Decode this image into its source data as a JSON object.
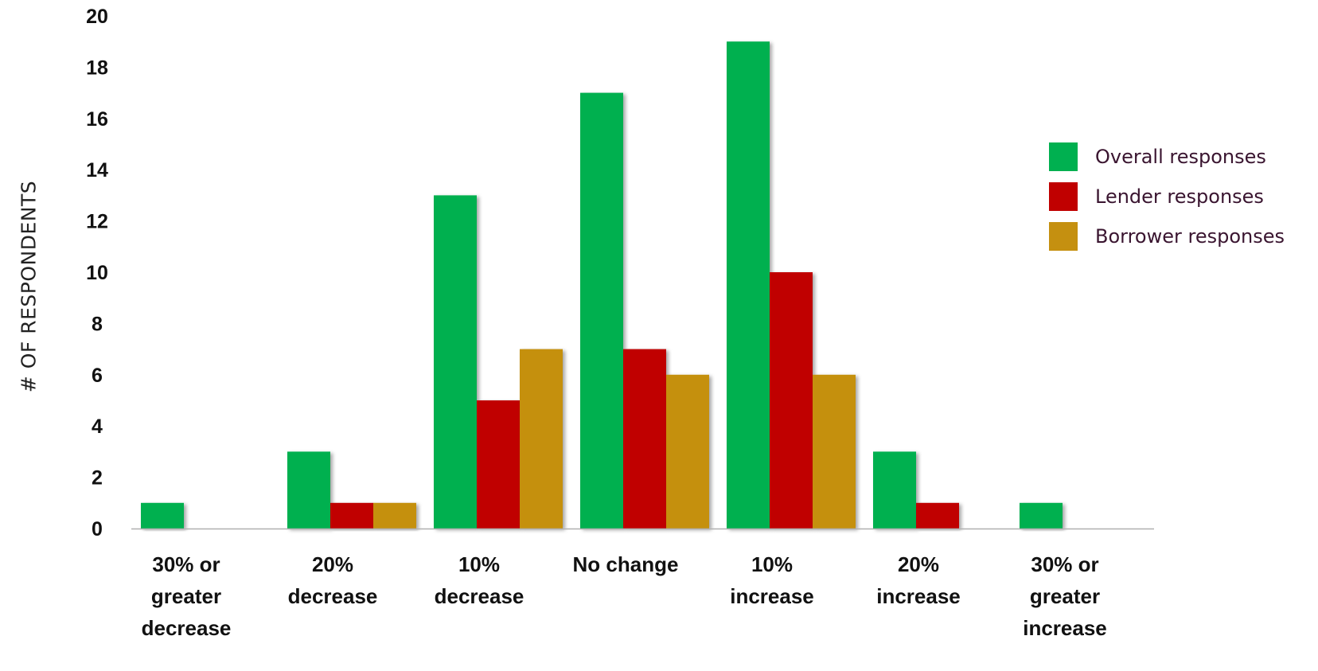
{
  "chart_data": {
    "type": "bar",
    "categories": [
      [
        "30% or",
        "greater",
        "decrease"
      ],
      [
        "20%",
        "decrease"
      ],
      [
        "10%",
        "decrease"
      ],
      [
        "No change"
      ],
      [
        "10%",
        "increase"
      ],
      [
        "20%",
        "increase"
      ],
      [
        "30% or",
        "greater",
        "increase"
      ]
    ],
    "series": [
      {
        "name": "Overall responses",
        "color": "#00b050",
        "values": [
          1,
          3,
          13,
          17,
          19,
          3,
          1
        ]
      },
      {
        "name": "Lender responses",
        "color": "#c00000",
        "values": [
          0,
          1,
          5,
          7,
          10,
          1,
          0
        ]
      },
      {
        "name": "Borrower responses",
        "color": "#c59010",
        "values": [
          0,
          1,
          7,
          6,
          6,
          0,
          0
        ]
      }
    ],
    "title": "",
    "xlabel": "",
    "ylabel": "# OF RESPONDENTS",
    "ylim": [
      0,
      20
    ],
    "yticks": [
      "0",
      "2",
      "4",
      "6",
      "8",
      "10",
      "12",
      "14",
      "16",
      "18",
      "20"
    ],
    "grid": false,
    "legend": "right"
  }
}
